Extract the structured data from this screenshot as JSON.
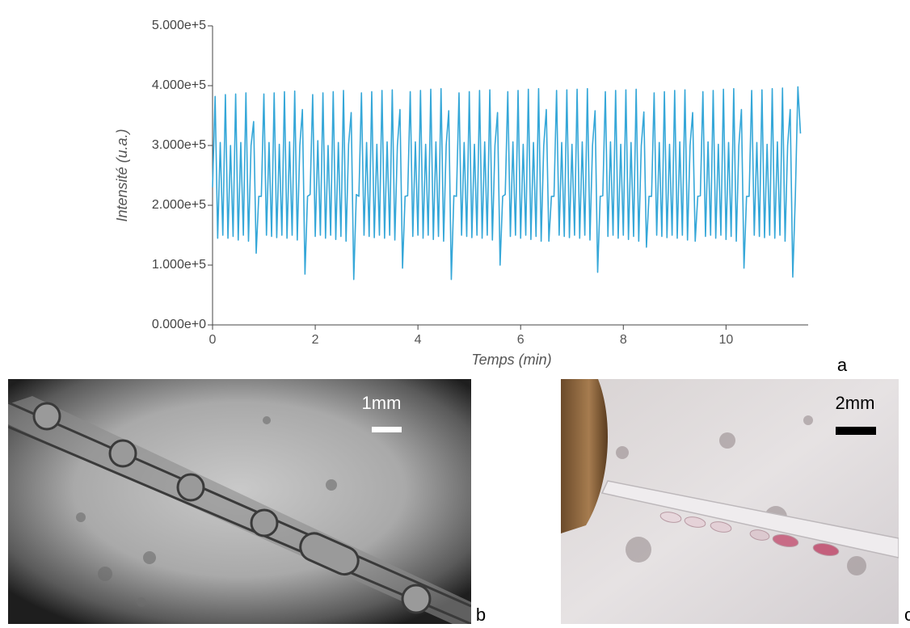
{
  "chart_data": {
    "type": "line",
    "x_label": "Temps (min)",
    "y_label": "Intensité (u.a.)",
    "xlim": [
      0,
      11.6
    ],
    "xticks": [
      0,
      2,
      4,
      6,
      8,
      10
    ],
    "ylim": [
      0,
      500000
    ],
    "yticks": [
      {
        "value": 0,
        "label": "0.000e+0"
      },
      {
        "value": 100000,
        "label": "1.000e+5"
      },
      {
        "value": 200000,
        "label": "2.000e+5"
      },
      {
        "value": 300000,
        "label": "3.000e+5"
      },
      {
        "value": 400000,
        "label": "4.000e+5"
      },
      {
        "value": 500000,
        "label": "5.000e+5"
      }
    ],
    "series": [
      {
        "color": "#35a7d8",
        "x": [
          0,
          0.05,
          0.1,
          0.15,
          0.2,
          0.25,
          0.3,
          0.35,
          0.4,
          0.45,
          0.5,
          0.55,
          0.6,
          0.65,
          0.7,
          0.75,
          0.8,
          0.85,
          0.9,
          0.95,
          1,
          1.05,
          1.1,
          1.15,
          1.2,
          1.25,
          1.3,
          1.35,
          1.4,
          1.45,
          1.5,
          1.55,
          1.6,
          1.65,
          1.7,
          1.75,
          1.8,
          1.85,
          1.9,
          1.95,
          2,
          2.05,
          2.1,
          2.15,
          2.2,
          2.25,
          2.3,
          2.35,
          2.4,
          2.45,
          2.5,
          2.55,
          2.6,
          2.65,
          2.7,
          2.75,
          2.8,
          2.85,
          2.9,
          2.95,
          3,
          3.05,
          3.1,
          3.15,
          3.2,
          3.25,
          3.3,
          3.35,
          3.4,
          3.45,
          3.5,
          3.55,
          3.6,
          3.65,
          3.7,
          3.75,
          3.8,
          3.85,
          3.9,
          3.95,
          4,
          4.05,
          4.1,
          4.15,
          4.2,
          4.25,
          4.3,
          4.35,
          4.4,
          4.45,
          4.5,
          4.55,
          4.6,
          4.65,
          4.7,
          4.75,
          4.8,
          4.85,
          4.9,
          4.95,
          5,
          5.05,
          5.1,
          5.15,
          5.2,
          5.25,
          5.3,
          5.35,
          5.4,
          5.45,
          5.5,
          5.55,
          5.6,
          5.65,
          5.7,
          5.75,
          5.8,
          5.85,
          5.9,
          5.95,
          6,
          6.05,
          6.1,
          6.15,
          6.2,
          6.25,
          6.3,
          6.35,
          6.4,
          6.45,
          6.5,
          6.55,
          6.6,
          6.65,
          6.7,
          6.75,
          6.8,
          6.85,
          6.9,
          6.95,
          7,
          7.05,
          7.1,
          7.15,
          7.2,
          7.25,
          7.3,
          7.35,
          7.4,
          7.45,
          7.5,
          7.55,
          7.6,
          7.65,
          7.7,
          7.75,
          7.8,
          7.85,
          7.9,
          7.95,
          8,
          8.05,
          8.1,
          8.15,
          8.2,
          8.25,
          8.3,
          8.35,
          8.4,
          8.45,
          8.5,
          8.55,
          8.6,
          8.65,
          8.7,
          8.75,
          8.8,
          8.85,
          8.9,
          8.95,
          9,
          9.05,
          9.1,
          9.15,
          9.2,
          9.25,
          9.3,
          9.35,
          9.4,
          9.45,
          9.5,
          9.55,
          9.6,
          9.65,
          9.7,
          9.75,
          9.8,
          9.85,
          9.9,
          9.95,
          10,
          10.05,
          10.1,
          10.15,
          10.2,
          10.25,
          10.3,
          10.35,
          10.4,
          10.45,
          10.5,
          10.55,
          10.6,
          10.65,
          10.7,
          10.75,
          10.8,
          10.85,
          10.9,
          10.95,
          11,
          11.05,
          11.1,
          11.15,
          11.2,
          11.25,
          11.3,
          11.35,
          11.4,
          11.45
        ],
        "values": [
          230000,
          382000,
          145000,
          305000,
          150000,
          385000,
          145000,
          300000,
          148000,
          386000,
          142000,
          305000,
          150000,
          388000,
          140000,
          300000,
          340000,
          120000,
          215000,
          215000,
          386000,
          150000,
          305000,
          148000,
          388000,
          146000,
          302000,
          150000,
          390000,
          145000,
          306000,
          150000,
          391000,
          142000,
          300000,
          360000,
          85000,
          215000,
          218000,
          385000,
          148000,
          308000,
          150000,
          388000,
          145000,
          300000,
          150000,
          390000,
          143000,
          305000,
          148000,
          392000,
          140000,
          302000,
          355000,
          76000,
          218000,
          215000,
          388000,
          150000,
          305000,
          148000,
          390000,
          146000,
          302000,
          150000,
          392000,
          145000,
          306000,
          150000,
          393000,
          142000,
          300000,
          360000,
          95000,
          215000,
          216000,
          390000,
          148000,
          306000,
          150000,
          392000,
          145000,
          302000,
          150000,
          394000,
          143000,
          306000,
          148000,
          395000,
          140000,
          300000,
          358000,
          76000,
          216000,
          215000,
          388000,
          150000,
          305000,
          148000,
          390000,
          146000,
          302000,
          150000,
          392000,
          145000,
          306000,
          150000,
          393000,
          142000,
          300000,
          355000,
          100000,
          215000,
          218000,
          390000,
          148000,
          306000,
          150000,
          392000,
          145000,
          302000,
          150000,
          394000,
          143000,
          305000,
          148000,
          395000,
          140000,
          300000,
          360000,
          140000,
          215000,
          215000,
          392000,
          150000,
          305000,
          148000,
          393000,
          146000,
          302000,
          150000,
          394000,
          145000,
          306000,
          150000,
          395000,
          142000,
          300000,
          358000,
          88000,
          215000,
          216000,
          390000,
          148000,
          306000,
          150000,
          392000,
          145000,
          302000,
          150000,
          393000,
          143000,
          305000,
          148000,
          394000,
          140000,
          300000,
          356000,
          130000,
          215000,
          215000,
          388000,
          150000,
          305000,
          148000,
          390000,
          146000,
          302000,
          150000,
          392000,
          145000,
          306000,
          150000,
          393000,
          142000,
          300000,
          355000,
          140000,
          215000,
          216000,
          390000,
          148000,
          306000,
          150000,
          392000,
          145000,
          302000,
          150000,
          394000,
          143000,
          305000,
          148000,
          395000,
          140000,
          300000,
          360000,
          95000,
          215000,
          215000,
          392000,
          150000,
          305000,
          148000,
          393000,
          146000,
          302000,
          150000,
          395000,
          145000,
          306000,
          150000,
          396000,
          140000,
          300000,
          360000,
          80000,
          215000,
          398000,
          320000
        ]
      }
    ]
  },
  "panel_labels": [
    "a",
    "b",
    "c"
  ],
  "scale_bars": [
    "1mm",
    "2mm"
  ]
}
